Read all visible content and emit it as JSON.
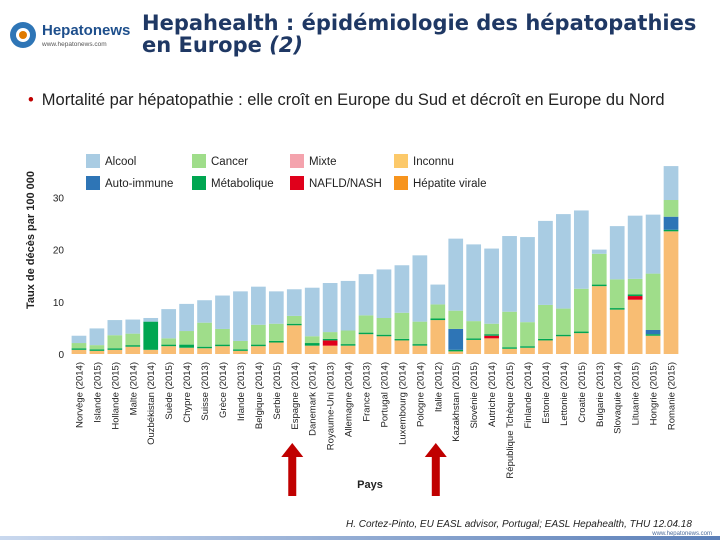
{
  "header": {
    "logo_name": "Hepatonews",
    "logo_url": "www.hepatonews.com",
    "title_line1": "Hepahealth : épidémiologie des hépatopathies",
    "title_line2": "en Europe",
    "title_suffix": "(2)"
  },
  "bullet_text": "Mortalité par hépatopathie : elle croît en Europe du Sud et décroît en Europe du Nord",
  "colors": {
    "alcool": "#a9cce3",
    "cancer": "#9fdd8a",
    "mixte": "#f4a3ad",
    "inconnu": "#fcc96a",
    "autoimmune": "#2e75b6",
    "metabolique": "#00a651",
    "nafld": "#e0001b",
    "viral": "#f7941d",
    "viral_bar": "#f8bd73",
    "arrow": "#c00000",
    "title": "#1f3864"
  },
  "chart_data": {
    "type": "bar",
    "stacked": true,
    "ylabel": "Taux de décès par 100 000",
    "xlabel": "Pays",
    "yticks": [
      0,
      10,
      20,
      30
    ],
    "ylim": [
      0,
      33
    ],
    "legend": [
      {
        "key": "alcool",
        "label": "Alcool"
      },
      {
        "key": "cancer",
        "label": "Cancer"
      },
      {
        "key": "mixte",
        "label": "Mixte"
      },
      {
        "key": "inconnu",
        "label": "Inconnu"
      },
      {
        "key": "autoimmune",
        "label": "Auto-immune"
      },
      {
        "key": "metabolique",
        "label": "Métabolique"
      },
      {
        "key": "nafld",
        "label": "NAFLD/NASH"
      },
      {
        "key": "viral",
        "label": "Hépatite virale"
      }
    ],
    "categories": [
      "Norvège (2014)",
      "Islande (2015)",
      "Hollande (2015)",
      "Malte (2014)",
      "Ouzbékistan (2014)",
      "Suède (2015)",
      "Chypre (2014)",
      "Suisse (2013)",
      "Grèce (2014)",
      "Irlande (2013)",
      "Belgique (2014)",
      "Serbie (2015)",
      "Espagne (2014)",
      "Danemark (2014)",
      "Royaume-Uni (2013)",
      "Allemagne (2014)",
      "France (2013)",
      "Portugal (2014)",
      "Luxembourg (2014)",
      "Pologne (2014)",
      "Italie (2012)",
      "Kazakhstan (2015)",
      "Slovénie (2015)",
      "Autriche (2014)",
      "République Tchèque (2015)",
      "Finlande (2014)",
      "Estonie (2014)",
      "Lettonie (2014)",
      "Croatie (2015)",
      "Bulgarie (2013)",
      "Slovaquie (2014)",
      "Lituanie (2015)",
      "Hongrie (2015)",
      "Romanie (2015)"
    ],
    "arrows": [
      "Espagne (2014)",
      "Italie (2012)"
    ],
    "series": [
      {
        "key": "viral",
        "name": "Hépatite virale",
        "values": [
          0.8,
          0.6,
          0.8,
          1.4,
          0.8,
          1.5,
          1.2,
          1.1,
          1.5,
          0.6,
          1.5,
          2.2,
          5.5,
          1.6,
          1.6,
          1.6,
          3.8,
          3.4,
          2.6,
          1.6,
          6.5,
          0.5,
          2.7,
          3.0,
          1.0,
          1.2,
          2.6,
          3.4,
          4.0,
          13.0,
          8.5,
          10.4,
          3.5,
          23.5
        ]
      },
      {
        "key": "nafld",
        "name": "NAFLD/NASH",
        "values": [
          0,
          0,
          0,
          0,
          0,
          0,
          0,
          0,
          0,
          0,
          0,
          0,
          0,
          0,
          1.0,
          0,
          0,
          0,
          0,
          0,
          0,
          0,
          0,
          0.5,
          0,
          0,
          0,
          0,
          0,
          0,
          0,
          0.7,
          0,
          0
        ]
      },
      {
        "key": "metabolique",
        "name": "Métabolique",
        "values": [
          0.3,
          0.3,
          0.3,
          0.3,
          5.4,
          0.3,
          0.6,
          0.3,
          0.3,
          0.3,
          0.3,
          0.3,
          0.3,
          0.5,
          0.3,
          0.3,
          0.3,
          0.3,
          0.3,
          0.3,
          0.3,
          0.3,
          0.3,
          0.3,
          0.3,
          0.3,
          0.3,
          0.3,
          0.3,
          0.3,
          0.3,
          0.3,
          0.3,
          0.3
        ]
      },
      {
        "key": "autoimmune",
        "name": "Auto-immune",
        "values": [
          0,
          0,
          0,
          0,
          0,
          0,
          0,
          0,
          0,
          0,
          0,
          0,
          0,
          0,
          0,
          0,
          0,
          0,
          0,
          0,
          0,
          4.0,
          0,
          0,
          0,
          0,
          0,
          0,
          0,
          0,
          0,
          0,
          0.8,
          2.5
        ]
      },
      {
        "key": "inconnu",
        "name": "Inconnu",
        "values": [
          0,
          0,
          0,
          0,
          0,
          0,
          0,
          0,
          0,
          0,
          0,
          0,
          0,
          0,
          0,
          0,
          0,
          0,
          0,
          0,
          0,
          0,
          0,
          0,
          0,
          0,
          0,
          0,
          0,
          0,
          0,
          0,
          0,
          0
        ]
      },
      {
        "key": "mixte",
        "name": "Mixte",
        "values": [
          0,
          0,
          0,
          0,
          0,
          0,
          0,
          0,
          0,
          0,
          0,
          0,
          0,
          0,
          0,
          0,
          0,
          0,
          0,
          0,
          0,
          0,
          0,
          0,
          0,
          0,
          0,
          0,
          0,
          0,
          0,
          0,
          0,
          0
        ]
      },
      {
        "key": "cancer",
        "name": "Cancer",
        "values": [
          1.0,
          0.8,
          2.5,
          2.2,
          0,
          1.2,
          2.6,
          4.6,
          3.0,
          1.6,
          3.8,
          3.3,
          1.5,
          1.3,
          1.3,
          2.6,
          3.3,
          3.2,
          5.0,
          4.3,
          2.7,
          3.5,
          3.3,
          2.0,
          6.8,
          4.6,
          6.5,
          5.0,
          8.2,
          5.9,
          5.5,
          3.0,
          10.8,
          3.2
        ]
      },
      {
        "key": "alcool",
        "name": "Alcool",
        "values": [
          1.4,
          3.2,
          2.9,
          2.7,
          0.7,
          5.6,
          5.2,
          4.3,
          6.4,
          9.5,
          7.3,
          6.2,
          5.1,
          9.3,
          9.4,
          9.5,
          7.9,
          9.3,
          9.1,
          12.7,
          3.8,
          13.8,
          14.7,
          14.4,
          14.5,
          16.3,
          16.1,
          18.1,
          15.0,
          0.8,
          10.2,
          12.1,
          11.3,
          6.5
        ]
      }
    ]
  },
  "footer": {
    "reference": "H. Cortez-Pinto, EU EASL advisor, Portugal; EASL Hepahealth, THU 12.04.18",
    "url": "www.hepatonews.com"
  }
}
